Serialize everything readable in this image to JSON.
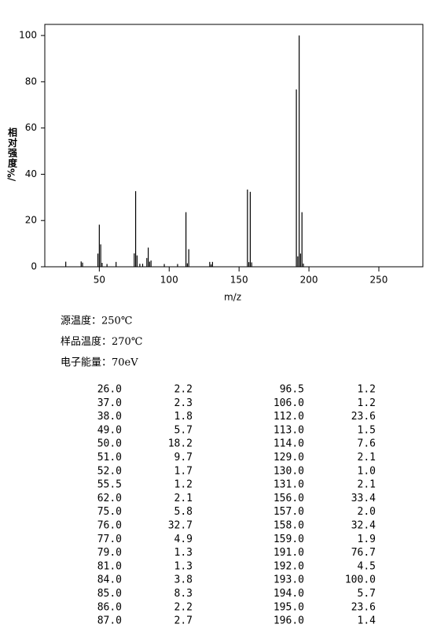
{
  "chart_data": {
    "type": "stem",
    "ylabel": "相对强度",
    "yunit": "/%",
    "xlabel": "m/z",
    "color": "#000000",
    "x": [
      26,
      37,
      38,
      49,
      50,
      51,
      52,
      55.5,
      62,
      75,
      76,
      77,
      79,
      81,
      84,
      85,
      86,
      87,
      96.5,
      106,
      112,
      113,
      114,
      129,
      130,
      131,
      156,
      157,
      158,
      159,
      191,
      192,
      193,
      194,
      195,
      196
    ],
    "values": [
      2.2,
      2.3,
      1.8,
      5.7,
      18.2,
      9.7,
      1.7,
      1.2,
      2.1,
      5.8,
      32.7,
      4.9,
      1.3,
      1.3,
      3.8,
      8.3,
      2.2,
      2.7,
      1.2,
      1.2,
      23.6,
      1.5,
      7.6,
      2.1,
      1.0,
      2.1,
      33.4,
      2.0,
      32.4,
      1.9,
      76.7,
      4.5,
      100.0,
      5.7,
      23.6,
      1.4
    ],
    "xlim": [
      11,
      281.5
    ],
    "ylim": [
      0,
      104.8
    ],
    "xticks": [
      50,
      100,
      150,
      200,
      250
    ],
    "yticks": [
      0,
      20,
      40,
      60,
      80,
      100
    ]
  },
  "conditions": [
    "源温度：250℃",
    "样品温度：270℃",
    "电子能量：70eV"
  ],
  "table": {
    "rows": [
      [
        "26.0",
        "2.2",
        "96.5",
        "1.2"
      ],
      [
        "37.0",
        "2.3",
        "106.0",
        "1.2"
      ],
      [
        "38.0",
        "1.8",
        "112.0",
        "23.6"
      ],
      [
        "49.0",
        "5.7",
        "113.0",
        "1.5"
      ],
      [
        "50.0",
        "18.2",
        "114.0",
        "7.6"
      ],
      [
        "51.0",
        "9.7",
        "129.0",
        "2.1"
      ],
      [
        "52.0",
        "1.7",
        "130.0",
        "1.0"
      ],
      [
        "55.5",
        "1.2",
        "131.0",
        "2.1"
      ],
      [
        "62.0",
        "2.1",
        "156.0",
        "33.4"
      ],
      [
        "75.0",
        "5.8",
        "157.0",
        "2.0"
      ],
      [
        "76.0",
        "32.7",
        "158.0",
        "32.4"
      ],
      [
        "77.0",
        "4.9",
        "159.0",
        "1.9"
      ],
      [
        "79.0",
        "1.3",
        "191.0",
        "76.7"
      ],
      [
        "81.0",
        "1.3",
        "192.0",
        "4.5"
      ],
      [
        "84.0",
        "3.8",
        "193.0",
        "100.0"
      ],
      [
        "85.0",
        "8.3",
        "194.0",
        "5.7"
      ],
      [
        "86.0",
        "2.2",
        "195.0",
        "23.6"
      ],
      [
        "87.0",
        "2.7",
        "196.0",
        "1.4"
      ]
    ]
  }
}
